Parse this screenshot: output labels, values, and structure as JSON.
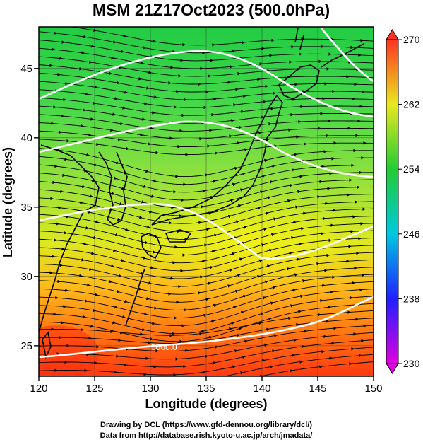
{
  "title": "MSM 21Z17Oct2023 (500.0hPa)",
  "x_axis": {
    "label": "Longitude (degrees)",
    "ticks": [
      "120",
      "125",
      "130",
      "135",
      "140",
      "145",
      "150"
    ]
  },
  "y_axis": {
    "label": "Latitude  (degrees)",
    "ticks": [
      "25",
      "30",
      "35",
      "40",
      "45"
    ]
  },
  "colorbar": {
    "ticks": [
      "230",
      "238",
      "246",
      "254",
      "262",
      "270"
    ]
  },
  "contour_label": "5000.0",
  "credits": {
    "line1": "Drawing by DCL (https://www.gfd-dennou.org/library/dcl/)",
    "line2": "Data from http://database.rish.kyoto-u.ac.jp/arch/jmadata/"
  },
  "colors": {
    "cold": "#cc00cc",
    "cool": "#0000ff",
    "mild": "#00c8c8",
    "warm_green": "#33cc33",
    "yellow": "#ffff00",
    "hot": "#ff3300",
    "contour": "#ffffff",
    "streamline": "#000000"
  }
}
